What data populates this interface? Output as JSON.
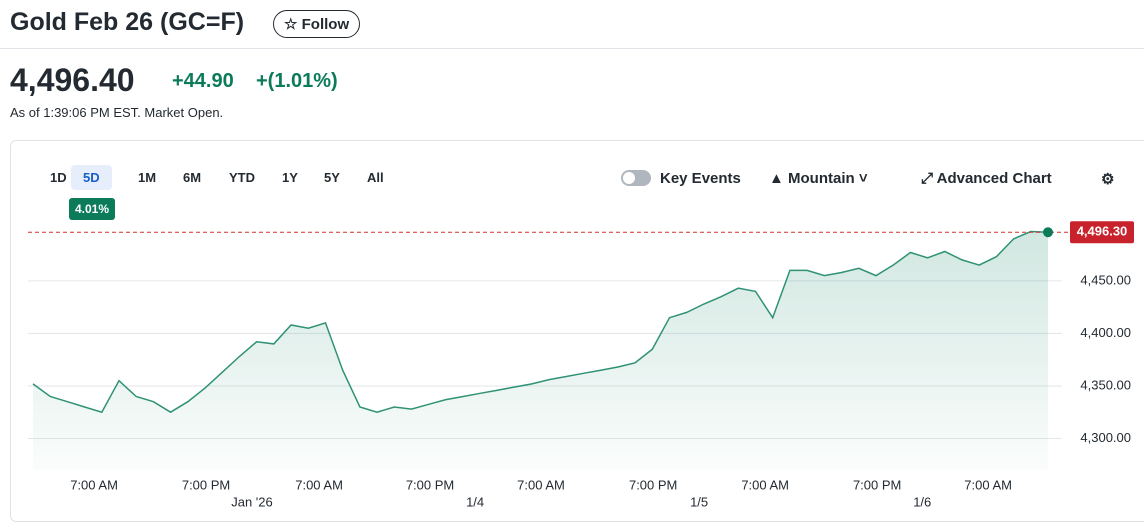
{
  "header": {
    "title": "Gold Feb 26 (GC=F)",
    "follow": "Follow",
    "price": "4,496.40",
    "change": "+44.90",
    "change_pct": "+(1.01%)",
    "as_of": "As of 1:39:06 PM EST. Market Open."
  },
  "toolbar": {
    "ranges": [
      "1D",
      "5D",
      "1M",
      "6M",
      "YTD",
      "1Y",
      "5Y",
      "All"
    ],
    "range_badge": "4.01%",
    "key_events": "Key Events",
    "mountain": "Mountain",
    "advanced": "Advanced Chart"
  },
  "chart_data": {
    "type": "area",
    "color": "#2f9275",
    "values": [
      4352,
      4340,
      4335,
      4330,
      4325,
      4355,
      4340,
      4335,
      4325,
      4335,
      4348,
      4363,
      4378,
      4392,
      4390,
      4408,
      4405,
      4410,
      4365,
      4330,
      4325,
      4330,
      4328,
      4332.5,
      4337,
      4340,
      4343,
      4346,
      4349,
      4352,
      4356,
      4359,
      4362,
      4365,
      4368,
      4372,
      4385,
      4415,
      4420,
      4428,
      4435,
      4443,
      4440,
      4415,
      4460,
      4460,
      4455,
      4458,
      4462,
      4455,
      4465,
      4477,
      4472,
      4478,
      4470,
      4465,
      4473,
      4490,
      4497,
      4496.3
    ],
    "xlim": [
      0,
      59
    ],
    "xticks": [
      {
        "value": 3.55,
        "label": "7:00 AM"
      },
      {
        "value": 10.06,
        "label": "7:00 PM"
      },
      {
        "value": 16.63,
        "label": "7:00 AM"
      },
      {
        "value": 23.08,
        "label": "7:00 PM"
      },
      {
        "value": 29.53,
        "label": "7:00 AM"
      },
      {
        "value": 36.05,
        "label": "7:00 PM"
      },
      {
        "value": 42.56,
        "label": "7:00 AM"
      },
      {
        "value": 49.07,
        "label": "7:00 PM"
      },
      {
        "value": 55.52,
        "label": "7:00 AM"
      }
    ],
    "date_ticks": [
      {
        "value": 12.73,
        "label": "Jan '26"
      },
      {
        "value": 25.7,
        "label": "1/4"
      },
      {
        "value": 38.72,
        "label": "1/5"
      },
      {
        "value": 51.69,
        "label": "1/6"
      }
    ],
    "ylim": [
      4270,
      4527
    ],
    "yticks": [
      {
        "value": 4300,
        "label": "4,300.00"
      },
      {
        "value": 4350,
        "label": "4,350.00"
      },
      {
        "value": 4400,
        "label": "4,400.00"
      },
      {
        "value": 4450,
        "label": "4,450.00"
      }
    ],
    "grid": true,
    "last_price": {
      "value": 4496.3,
      "label": "4,496.30"
    }
  }
}
